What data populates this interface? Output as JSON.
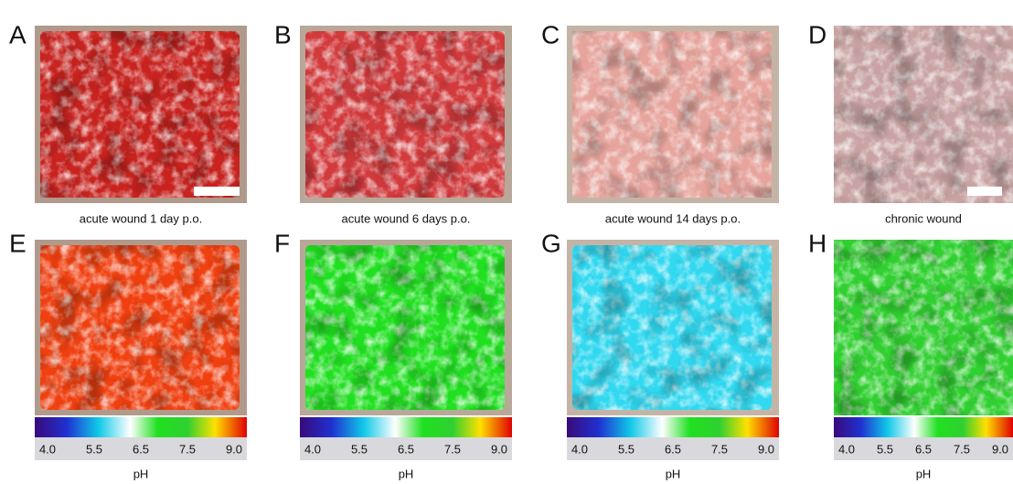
{
  "panels": [
    {
      "letter": "A",
      "caption": "acute wound 1 day p.o."
    },
    {
      "letter": "B",
      "caption": "acute wound 6 days p.o."
    },
    {
      "letter": "C",
      "caption": "acute wound 14 days p.o."
    },
    {
      "letter": "D",
      "caption": "chronic wound"
    }
  ],
  "heatmaps": [
    {
      "letter": "E",
      "ticks": [
        "4.0",
        "5.5",
        "6.5",
        "7.5",
        "9.0"
      ],
      "axis_label": "pH"
    },
    {
      "letter": "F",
      "ticks": [
        "4.0",
        "5.5",
        "6.5",
        "7.5",
        "9.0"
      ],
      "axis_label": "pH"
    },
    {
      "letter": "G",
      "ticks": [
        "4.0",
        "5.5",
        "6.5",
        "7.5",
        "9.0"
      ],
      "axis_label": "pH"
    },
    {
      "letter": "H",
      "ticks": [
        "4.0",
        "5.5",
        "6.5",
        "7.5",
        "9.0"
      ],
      "axis_label": "pH"
    }
  ]
}
